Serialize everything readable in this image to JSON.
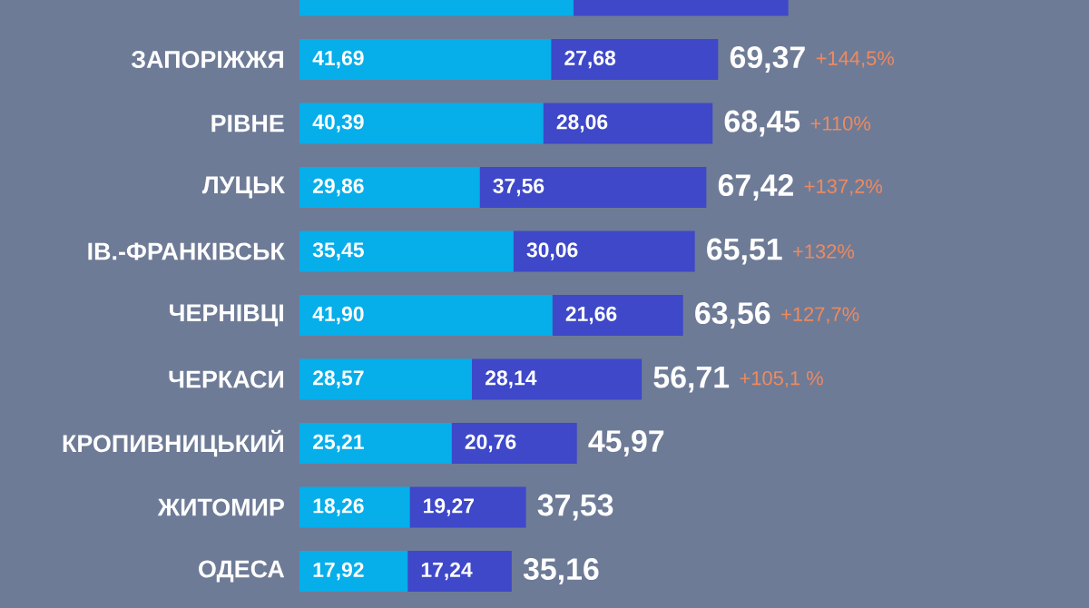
{
  "chart_data": {
    "type": "bar",
    "orientation": "horizontal",
    "stacked": true,
    "tick_labels": "y",
    "categories": [
      null,
      "ЗАПОРІЖЖЯ",
      "РІВНЕ",
      "ЛУЦЬК",
      "ІВ.-ФРАНКІВСЬК",
      "ЧЕРНІВЦІ",
      "ЧЕРКАСИ",
      "КРОПИВНИЦЬКИЙ",
      "ЖИТОМИР",
      "ОДЕСА"
    ],
    "series": [
      {
        "color": "#06aeea",
        "values": [
          45.4,
          41.69,
          40.39,
          29.86,
          35.45,
          41.9,
          28.57,
          25.21,
          18.26,
          17.92
        ],
        "value_labels": [
          null,
          "41,69",
          "40,39",
          "29,86",
          "35,45",
          "41,90",
          "28,57",
          "25,21",
          "18,26",
          "17,92"
        ]
      },
      {
        "color": "#3e48c9",
        "values": [
          35.6,
          27.68,
          28.06,
          37.56,
          30.06,
          21.66,
          28.14,
          20.76,
          19.27,
          17.24
        ],
        "value_labels": [
          null,
          "27,68",
          "28,06",
          "37,56",
          "30,06",
          "21,66",
          "28,14",
          "20,76",
          "19,27",
          "17,24"
        ]
      }
    ],
    "totals": [
      null,
      "69,37",
      "68,45",
      "67,42",
      "65,51",
      "63,56",
      "56,71",
      "45,97",
      "37,53",
      "35,16"
    ],
    "annotations": [
      "+144,5%",
      "+110%",
      "+137,2%",
      "+132%",
      "+127,7%",
      "+105,1 %"
    ]
  }
}
